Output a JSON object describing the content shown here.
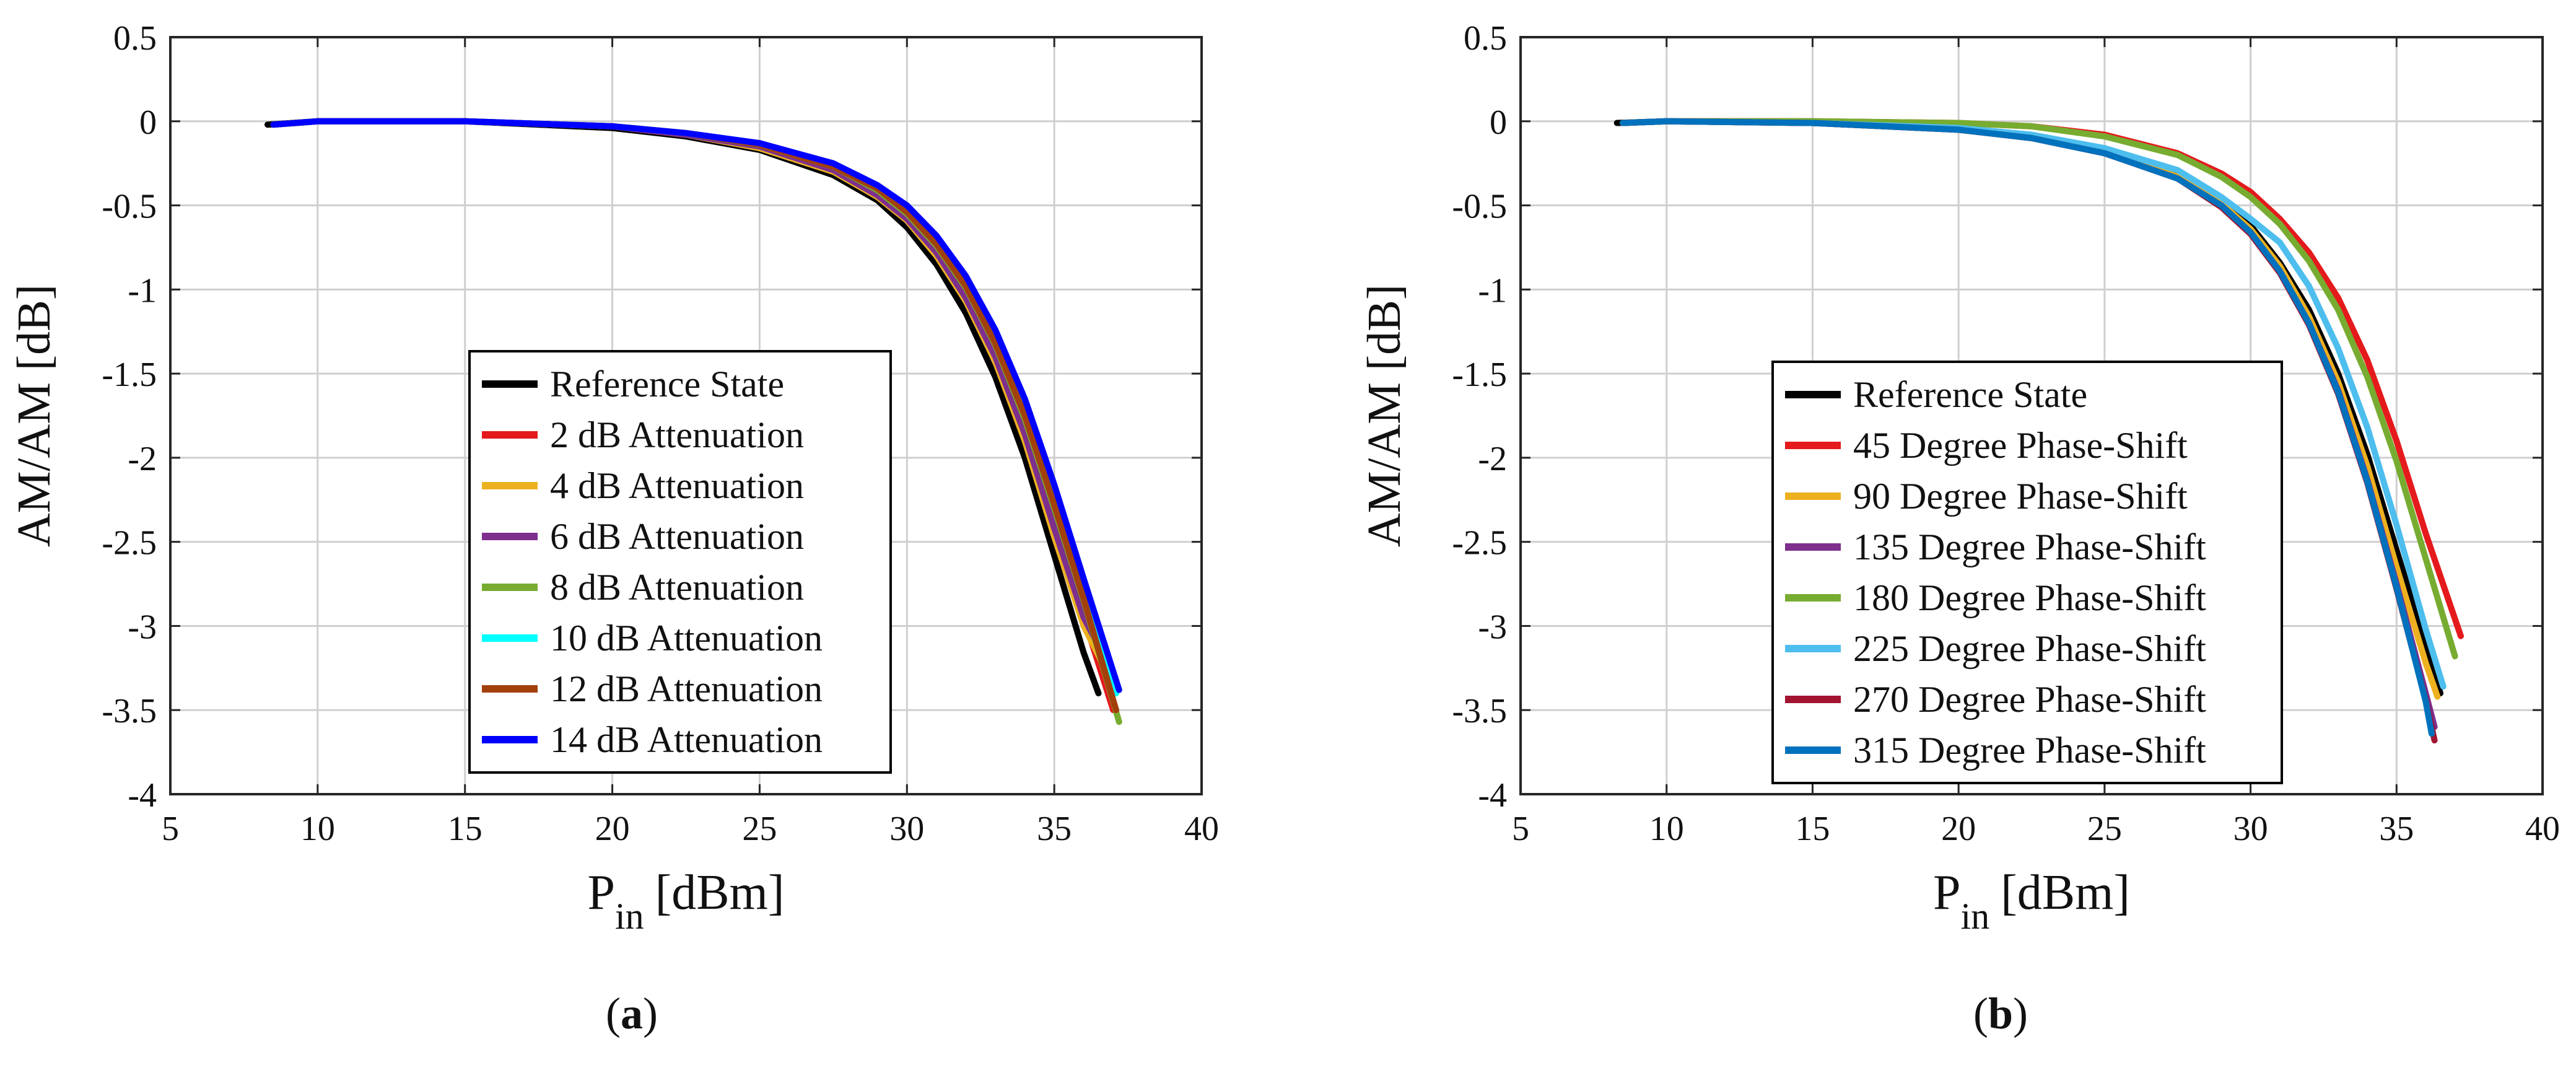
{
  "chart_data": [
    {
      "type": "line",
      "panel_label": "a",
      "caption": [
        "(",
        "a",
        ")"
      ],
      "title": "",
      "xlabel": {
        "main": "P",
        "sub": "in",
        "unit": "[dBm]"
      },
      "ylabel": "AM/AM [dB]",
      "xlim": [
        5,
        40
      ],
      "ylim": [
        -4,
        0.5
      ],
      "xticks": [
        5,
        10,
        15,
        20,
        25,
        30,
        35,
        40
      ],
      "yticks": [
        -4,
        -3.5,
        -3,
        -2.5,
        -2,
        -1.5,
        -1,
        -0.5,
        0,
        0.5
      ],
      "xtick_labels": [
        "5",
        "10",
        "15",
        "20",
        "25",
        "30",
        "35",
        "40"
      ],
      "ytick_labels": [
        "-4",
        "-3.5",
        "-3",
        "-2.5",
        "-2",
        "-1.5",
        "-1",
        "-0.5",
        "0",
        "0.5"
      ],
      "grid": true,
      "legend_position": "center",
      "series": [
        {
          "name": "Reference State",
          "color": "#000000",
          "x": [
            8.3,
            10,
            15,
            20,
            22.5,
            25,
            27.5,
            29,
            30,
            31,
            32,
            33,
            34,
            35,
            36,
            36.5
          ],
          "y": [
            -0.02,
            0,
            0,
            -0.04,
            -0.09,
            -0.17,
            -0.32,
            -0.47,
            -0.63,
            -0.85,
            -1.14,
            -1.52,
            -2.0,
            -2.58,
            -3.16,
            -3.4
          ]
        },
        {
          "name": "2 dB Attenuation",
          "color": "#e41a1c",
          "x": [
            8.5,
            10,
            15,
            20,
            22.5,
            25,
            27.5,
            29,
            30,
            31,
            32,
            33,
            34,
            35,
            36,
            37
          ],
          "y": [
            -0.02,
            0,
            0,
            -0.03,
            -0.08,
            -0.15,
            -0.29,
            -0.43,
            -0.57,
            -0.77,
            -1.03,
            -1.38,
            -1.83,
            -2.37,
            -2.95,
            -3.5
          ]
        },
        {
          "name": "4 dB Attenuation",
          "color": "#edb120",
          "x": [
            8.5,
            10,
            15,
            20,
            22.5,
            25,
            27.5,
            29,
            30,
            31,
            32,
            33,
            34,
            35,
            36,
            36.8
          ],
          "y": [
            -0.02,
            0,
            0,
            -0.03,
            -0.08,
            -0.16,
            -0.3,
            -0.45,
            -0.59,
            -0.8,
            -1.07,
            -1.43,
            -1.9,
            -2.47,
            -3.0,
            -3.28
          ]
        },
        {
          "name": "6 dB Attenuation",
          "color": "#7e2f8e",
          "x": [
            8.5,
            10,
            15,
            20,
            22.5,
            25,
            27.5,
            29,
            30,
            31,
            32,
            33,
            34,
            35,
            36,
            36.6
          ],
          "y": [
            -0.02,
            0,
            0,
            -0.03,
            -0.08,
            -0.15,
            -0.29,
            -0.44,
            -0.58,
            -0.78,
            -1.05,
            -1.4,
            -1.86,
            -2.42,
            -2.95,
            -3.15
          ]
        },
        {
          "name": "8 dB Attenuation",
          "color": "#77ac30",
          "x": [
            8.5,
            10,
            15,
            20,
            22.5,
            25,
            27.5,
            29,
            30,
            31,
            32,
            33,
            34,
            35,
            36,
            37.2
          ],
          "y": [
            -0.02,
            0,
            0,
            -0.03,
            -0.07,
            -0.14,
            -0.27,
            -0.41,
            -0.55,
            -0.74,
            -0.99,
            -1.33,
            -1.77,
            -2.3,
            -2.85,
            -3.57
          ]
        },
        {
          "name": "10 dB Attenuation",
          "color": "#00ffff",
          "x": [
            8.5,
            10,
            15,
            20,
            22.5,
            25,
            27.5,
            29,
            30,
            31,
            32,
            33,
            34,
            35,
            36,
            37.1
          ],
          "y": [
            -0.02,
            0,
            0,
            -0.03,
            -0.07,
            -0.14,
            -0.26,
            -0.39,
            -0.52,
            -0.7,
            -0.95,
            -1.28,
            -1.7,
            -2.22,
            -2.78,
            -3.4
          ]
        },
        {
          "name": "12 dB Attenuation",
          "color": "#a2400c",
          "x": [
            8.5,
            10,
            15,
            20,
            22.5,
            25,
            27.5,
            29,
            30,
            31,
            32,
            33,
            34,
            35,
            36,
            37.1
          ],
          "y": [
            -0.02,
            0,
            0,
            -0.03,
            -0.07,
            -0.14,
            -0.27,
            -0.4,
            -0.54,
            -0.73,
            -0.98,
            -1.32,
            -1.75,
            -2.28,
            -2.84,
            -3.5
          ]
        },
        {
          "name": "14 dB Attenuation",
          "color": "#0000ff",
          "x": [
            8.5,
            10,
            15,
            20,
            22.5,
            25,
            27.5,
            29,
            30,
            31,
            32,
            33,
            34,
            35,
            36,
            37.2
          ],
          "y": [
            -0.02,
            0,
            0,
            -0.03,
            -0.07,
            -0.13,
            -0.25,
            -0.38,
            -0.5,
            -0.68,
            -0.92,
            -1.24,
            -1.65,
            -2.16,
            -2.72,
            -3.38
          ]
        }
      ],
      "legend_style": {
        "background": "#ffffff",
        "border": "#000000"
      }
    },
    {
      "type": "line",
      "panel_label": "b",
      "caption": [
        "(",
        "b",
        ")"
      ],
      "title": "",
      "xlabel": {
        "main": "P",
        "sub": "in",
        "unit": "[dBm]"
      },
      "ylabel": "AM/AM [dB]",
      "xlim": [
        5,
        40
      ],
      "ylim": [
        -4,
        0.5
      ],
      "xticks": [
        5,
        10,
        15,
        20,
        25,
        30,
        35,
        40
      ],
      "yticks": [
        -4,
        -3.5,
        -3,
        -2.5,
        -2,
        -1.5,
        -1,
        -0.5,
        0,
        0.5
      ],
      "xtick_labels": [
        "5",
        "10",
        "15",
        "20",
        "25",
        "30",
        "35",
        "40"
      ],
      "ytick_labels": [
        "-4",
        "-3.5",
        "-3",
        "-2.5",
        "-2",
        "-1.5",
        "-1",
        "-0.5",
        "0",
        "0.5"
      ],
      "grid": true,
      "legend_position": "center",
      "series": [
        {
          "name": "Reference State",
          "color": "#000000",
          "x": [
            8.3,
            10,
            15,
            20,
            22.5,
            25,
            27.5,
            29,
            30,
            31,
            32,
            33,
            34,
            35,
            36,
            36.5
          ],
          "y": [
            -0.01,
            0,
            -0.01,
            -0.05,
            -0.1,
            -0.18,
            -0.32,
            -0.47,
            -0.62,
            -0.84,
            -1.12,
            -1.5,
            -1.98,
            -2.55,
            -3.12,
            -3.4
          ]
        },
        {
          "name": "45 Degree Phase-Shift",
          "color": "#e41a1c",
          "x": [
            8.5,
            10,
            15,
            20,
            22.5,
            25,
            27.5,
            29,
            30,
            31,
            32,
            33,
            34,
            35,
            36,
            37.2
          ],
          "y": [
            -0.01,
            0,
            0,
            -0.01,
            -0.03,
            -0.08,
            -0.19,
            -0.31,
            -0.42,
            -0.58,
            -0.78,
            -1.05,
            -1.42,
            -1.9,
            -2.45,
            -3.06
          ]
        },
        {
          "name": "90 Degree Phase-Shift",
          "color": "#edb120",
          "x": [
            8.5,
            10,
            15,
            20,
            22.5,
            25,
            27.5,
            29,
            30,
            31,
            32,
            33,
            34,
            35,
            36,
            36.4
          ],
          "y": [
            -0.01,
            0,
            -0.01,
            -0.05,
            -0.1,
            -0.18,
            -0.33,
            -0.49,
            -0.64,
            -0.86,
            -1.16,
            -1.55,
            -2.05,
            -2.65,
            -3.22,
            -3.42
          ]
        },
        {
          "name": "135 Degree Phase-Shift",
          "color": "#7e2f8e",
          "x": [
            8.5,
            10,
            15,
            20,
            22.5,
            25,
            27.5,
            29,
            30,
            31,
            32,
            33,
            34,
            35,
            36,
            36.3
          ],
          "y": [
            -0.01,
            0,
            -0.01,
            -0.05,
            -0.1,
            -0.19,
            -0.34,
            -0.5,
            -0.66,
            -0.89,
            -1.2,
            -1.6,
            -2.13,
            -2.75,
            -3.4,
            -3.6
          ]
        },
        {
          "name": "180 Degree Phase-Shift",
          "color": "#77ac30",
          "x": [
            8.5,
            10,
            15,
            20,
            22.5,
            25,
            27.5,
            29,
            30,
            31,
            32,
            33,
            34,
            35,
            36,
            37
          ],
          "y": [
            -0.01,
            0,
            0,
            -0.01,
            -0.03,
            -0.09,
            -0.2,
            -0.33,
            -0.45,
            -0.61,
            -0.83,
            -1.12,
            -1.52,
            -2.02,
            -2.6,
            -3.18
          ]
        },
        {
          "name": "225 Degree Phase-Shift",
          "color": "#4dbeee",
          "x": [
            8.5,
            10,
            15,
            20,
            22.5,
            25,
            27.5,
            29,
            30,
            31,
            32,
            33,
            34,
            35,
            36,
            36.6
          ],
          "y": [
            -0.01,
            0,
            -0.01,
            -0.04,
            -0.08,
            -0.16,
            -0.29,
            -0.45,
            -0.58,
            -0.72,
            -0.98,
            -1.35,
            -1.82,
            -2.4,
            -3.02,
            -3.36
          ]
        },
        {
          "name": "270 Degree Phase-Shift",
          "color": "#a2142f",
          "x": [
            8.5,
            10,
            15,
            20,
            22.5,
            25,
            27.5,
            29,
            30,
            31,
            32,
            33,
            34,
            35,
            36,
            36.3
          ],
          "y": [
            -0.01,
            0,
            -0.01,
            -0.05,
            -0.1,
            -0.19,
            -0.34,
            -0.51,
            -0.67,
            -0.9,
            -1.21,
            -1.62,
            -2.15,
            -2.78,
            -3.44,
            -3.68
          ]
        },
        {
          "name": "315 Degree Phase-Shift",
          "color": "#0072bd",
          "x": [
            8.5,
            10,
            15,
            20,
            22.5,
            25,
            27.5,
            29,
            30,
            31,
            32,
            33,
            34,
            35,
            36,
            36.2
          ],
          "y": [
            -0.01,
            0,
            -0.01,
            -0.05,
            -0.1,
            -0.19,
            -0.34,
            -0.5,
            -0.66,
            -0.89,
            -1.2,
            -1.61,
            -2.14,
            -2.77,
            -3.45,
            -3.64
          ]
        }
      ],
      "legend_style": {
        "background": "#ffffff",
        "border": "#000000"
      }
    }
  ]
}
